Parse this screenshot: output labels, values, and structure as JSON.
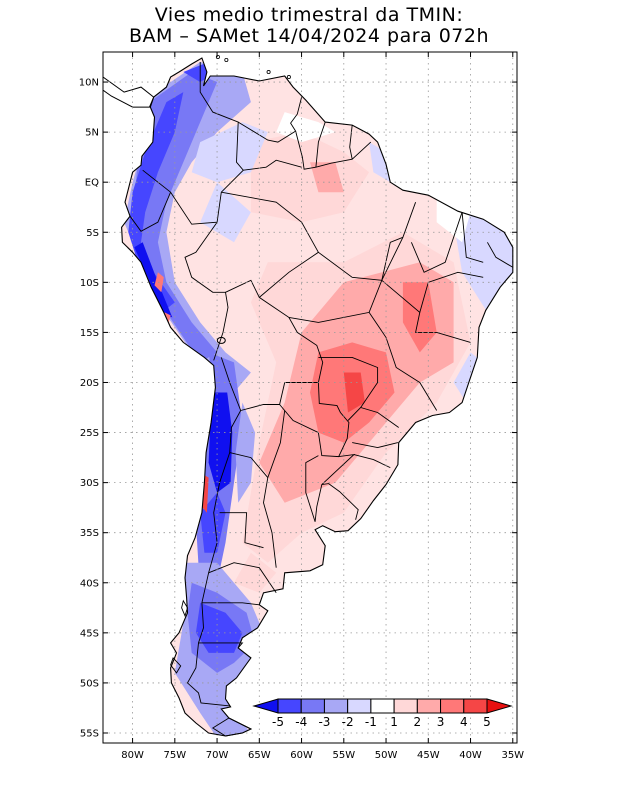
{
  "title": {
    "line1": "Vies medio trimestral da TMIN:",
    "line2": "BAM – SAMet 14/04/2024  para 072h"
  },
  "map": {
    "lat_range": [
      -56,
      13
    ],
    "lon_range": [
      -83.5,
      -34.5
    ],
    "grid": true,
    "lat_ticks": [
      {
        "value": 10,
        "label": "10N"
      },
      {
        "value": 5,
        "label": "5N"
      },
      {
        "value": 0,
        "label": "EQ"
      },
      {
        "value": -5,
        "label": "5S"
      },
      {
        "value": -10,
        "label": "10S"
      },
      {
        "value": -15,
        "label": "15S"
      },
      {
        "value": -20,
        "label": "20S"
      },
      {
        "value": -25,
        "label": "25S"
      },
      {
        "value": -30,
        "label": "30S"
      },
      {
        "value": -35,
        "label": "35S"
      },
      {
        "value": -40,
        "label": "40S"
      },
      {
        "value": -45,
        "label": "45S"
      },
      {
        "value": -50,
        "label": "50S"
      },
      {
        "value": -55,
        "label": "55S"
      }
    ],
    "lon_ticks": [
      {
        "value": -80,
        "label": "80W"
      },
      {
        "value": -75,
        "label": "75W"
      },
      {
        "value": -70,
        "label": "70W"
      },
      {
        "value": -65,
        "label": "65W"
      },
      {
        "value": -60,
        "label": "60W"
      },
      {
        "value": -55,
        "label": "55W"
      },
      {
        "value": -50,
        "label": "50W"
      },
      {
        "value": -45,
        "label": "45W"
      },
      {
        "value": -40,
        "label": "40W"
      },
      {
        "value": -35,
        "label": "35W"
      }
    ]
  },
  "colorbar": {
    "labels": [
      "-5",
      "-4",
      "-3",
      "-2",
      "-1",
      "1",
      "2",
      "3",
      "4",
      "5"
    ],
    "colors": [
      "#1010f0",
      "#4646ff",
      "#7878f5",
      "#a8a8f5",
      "#d8d8ff",
      "#ffffff",
      "#ffd8d8",
      "#ffaaaa",
      "#ff7878",
      "#f54646",
      "#e81010"
    ]
  }
}
